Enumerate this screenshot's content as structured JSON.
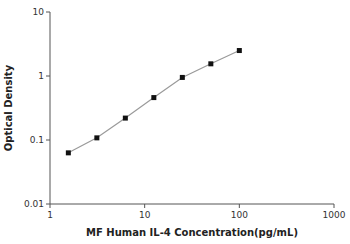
{
  "chart_data": {
    "type": "line",
    "x": [
      1.5625,
      3.125,
      6.25,
      12.5,
      25,
      50,
      100
    ],
    "values": [
      0.063,
      0.108,
      0.22,
      0.46,
      0.95,
      1.55,
      2.5
    ],
    "xlabel": "MF Human IL-4 Concentration(pg/mL)",
    "ylabel": "Optical Density",
    "log": true,
    "xlim": [
      1,
      1000
    ],
    "ylim": [
      0.01,
      10
    ],
    "xticks": [
      1,
      10,
      100,
      1000
    ],
    "yticks": [
      0.01,
      0.1,
      1,
      10
    ],
    "color": "#111111",
    "marker": "square",
    "grid": false
  }
}
